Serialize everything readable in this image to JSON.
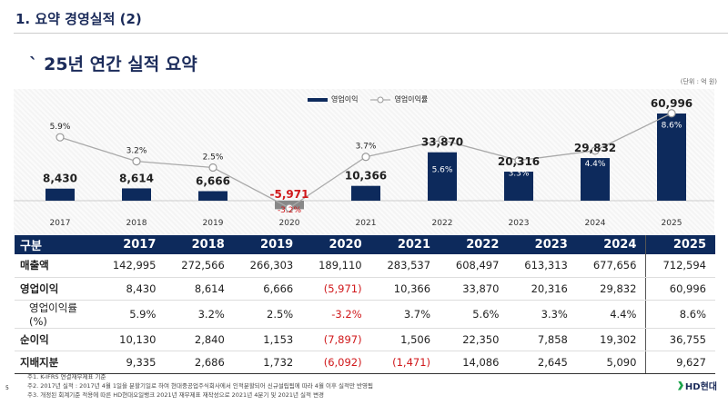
{
  "header": {
    "section_title": "1. 요약 경영실적 (2)",
    "main_title": "` 25년 연간 실적 요약",
    "unit": "(단위 : 억 원)"
  },
  "chart_data": {
    "type": "bar",
    "categories": [
      "2017",
      "2018",
      "2019",
      "2020",
      "2021",
      "2022",
      "2023",
      "2024",
      "2025"
    ],
    "series": [
      {
        "name": "영업이익",
        "type": "bar",
        "values": [
          8430,
          8614,
          6666,
          -5971,
          10366,
          33870,
          20316,
          29832,
          60996
        ],
        "labels": [
          "8,430",
          "8,614",
          "6,666",
          "-5,971",
          "10,366",
          "33,870",
          "20,316",
          "29,832",
          "60,996"
        ],
        "color": "#0d2a5c",
        "negative_color": "#888888"
      },
      {
        "name": "영업이익률",
        "type": "line",
        "values": [
          5.9,
          3.2,
          2.5,
          -3.2,
          3.7,
          5.6,
          3.3,
          4.4,
          8.6
        ],
        "labels": [
          "5.9%",
          "3.2%",
          "2.5%",
          "-3.2%",
          "3.7%",
          "5.6%",
          "3.3%",
          "4.4%",
          "8.6%"
        ],
        "color": "#aaaaaa"
      }
    ],
    "legend": "top-center",
    "grid": false
  },
  "table": {
    "headers": [
      "구분",
      "2017",
      "2018",
      "2019",
      "2020",
      "2021",
      "2022",
      "2023",
      "2024",
      "2025"
    ],
    "rows": [
      {
        "label": "매출액",
        "sub": false,
        "cells": [
          "142,995",
          "272,566",
          "266,303",
          "189,110",
          "283,537",
          "608,497",
          "613,313",
          "677,656",
          "712,594"
        ]
      },
      {
        "label": "영업이익",
        "sub": false,
        "cells": [
          "8,430",
          "8,614",
          "6,666",
          "(5,971)",
          "10,366",
          "33,870",
          "20,316",
          "29,832",
          "60,996"
        ]
      },
      {
        "label": "영업이익률(%)",
        "sub": true,
        "cells": [
          "5.9%",
          "3.2%",
          "2.5%",
          "-3.2%",
          "3.7%",
          "5.6%",
          "3.3%",
          "4.4%",
          "8.6%"
        ]
      },
      {
        "label": "순이익",
        "sub": false,
        "cells": [
          "10,130",
          "2,840",
          "1,153",
          "(7,897)",
          "1,506",
          "22,350",
          "7,858",
          "19,302",
          "36,755"
        ]
      },
      {
        "label": "지배지분",
        "sub": false,
        "cells": [
          "9,335",
          "2,686",
          "1,732",
          "(6,092)",
          "(1,471)",
          "14,086",
          "2,645",
          "5,090",
          "9,627"
        ]
      }
    ]
  },
  "notes": [
    "주1. K-IFRS 연결재무제표 기준",
    "주2. 2017년 실적 : 2017년 4월 1일을 분할기일로 하여 현대중공업주식회사에서 인적분할되어 신규설립됨에 따라 4월 이후 실적만 반영됨",
    "주3. 개정된 회계기준 적용에 따른 HD현대오일뱅크 2021년 재무제표 재작성으로 2021년 4분기 및 2021년 실적 변경"
  ],
  "page_number": "5",
  "logo": "HD현대"
}
